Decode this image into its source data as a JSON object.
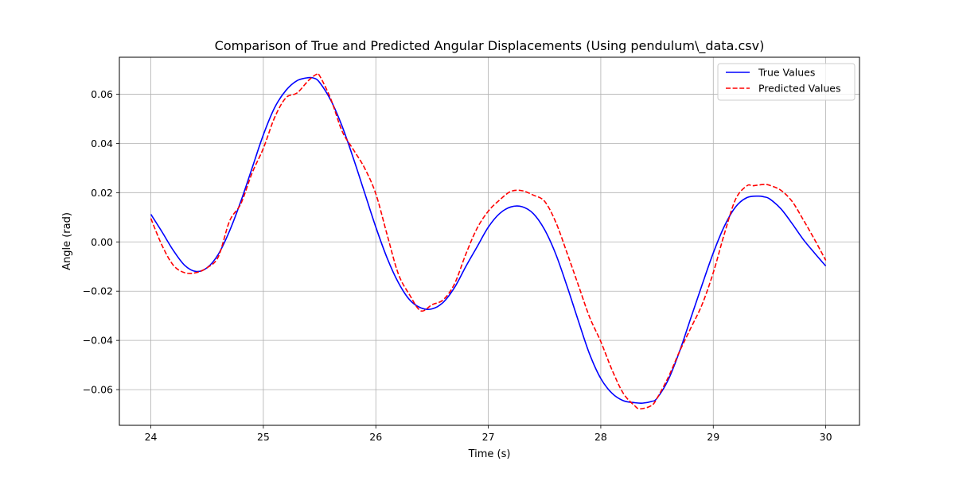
{
  "chart_data": {
    "type": "line",
    "title": "Comparison of True and Predicted Angular Displacements (Using pendulum\\_data.csv)",
    "xlabel": "Time (s)",
    "ylabel": "Angle (rad)",
    "xlim": [
      23.72,
      30.3
    ],
    "ylim": [
      -0.0745,
      0.075
    ],
    "xticks": [
      24,
      25,
      26,
      27,
      28,
      29,
      30
    ],
    "xtick_labels": [
      "24",
      "25",
      "26",
      "27",
      "28",
      "29",
      "30"
    ],
    "yticks": [
      -0.06,
      -0.04,
      -0.02,
      0.0,
      0.02,
      0.04,
      0.06
    ],
    "ytick_labels": [
      "−0.06",
      "−0.04",
      "−0.02",
      "0.00",
      "0.02",
      "0.04",
      "0.06"
    ],
    "grid": true,
    "legend_position": "top-right",
    "series": [
      {
        "name": "True Values",
        "color": "#0000ff",
        "style": "solid",
        "x": [
          24.0,
          24.1,
          24.2,
          24.3,
          24.4,
          24.5,
          24.6,
          24.7,
          24.8,
          24.9,
          25.0,
          25.1,
          25.2,
          25.3,
          25.4,
          25.45,
          25.5,
          25.6,
          25.7,
          25.8,
          25.9,
          26.0,
          26.1,
          26.2,
          26.3,
          26.4,
          26.5,
          26.6,
          26.7,
          26.8,
          26.9,
          27.0,
          27.1,
          27.2,
          27.3,
          27.4,
          27.5,
          27.6,
          27.7,
          27.8,
          27.9,
          28.0,
          28.1,
          28.2,
          28.3,
          28.37,
          28.45,
          28.5,
          28.6,
          28.7,
          28.8,
          28.9,
          29.0,
          29.1,
          29.2,
          29.3,
          29.4,
          29.45,
          29.5,
          29.6,
          29.7,
          29.8,
          29.9,
          30.0
        ],
        "y": [
          0.0112,
          0.004,
          -0.0035,
          -0.0095,
          -0.012,
          -0.0105,
          -0.005,
          0.0045,
          0.0165,
          0.03,
          0.0435,
          0.0545,
          0.0615,
          0.0655,
          0.0667,
          0.0665,
          0.0648,
          0.0575,
          0.047,
          0.034,
          0.02,
          0.006,
          -0.0065,
          -0.0165,
          -0.0235,
          -0.0268,
          -0.0272,
          -0.0245,
          -0.0185,
          -0.01,
          -0.002,
          0.006,
          0.0115,
          0.0142,
          0.0143,
          0.0115,
          0.005,
          -0.005,
          -0.018,
          -0.032,
          -0.0455,
          -0.0555,
          -0.0615,
          -0.0645,
          -0.0653,
          -0.0655,
          -0.0648,
          -0.0635,
          -0.056,
          -0.0445,
          -0.031,
          -0.0175,
          -0.0045,
          0.0065,
          0.0143,
          0.018,
          0.0186,
          0.0183,
          0.0175,
          0.0135,
          0.0075,
          0.001,
          -0.0045,
          -0.0098
        ]
      },
      {
        "name": "Predicted Values",
        "color": "#ff0000",
        "style": "dashed",
        "x": [
          24.0,
          24.1,
          24.2,
          24.3,
          24.4,
          24.5,
          24.6,
          24.7,
          24.8,
          24.9,
          25.0,
          25.1,
          25.2,
          25.3,
          25.4,
          25.47,
          25.5,
          25.6,
          25.7,
          25.8,
          25.9,
          26.0,
          26.1,
          26.2,
          26.3,
          26.4,
          26.5,
          26.6,
          26.7,
          26.8,
          26.9,
          27.0,
          27.1,
          27.2,
          27.3,
          27.4,
          27.5,
          27.6,
          27.7,
          27.8,
          27.9,
          28.0,
          28.1,
          28.2,
          28.3,
          28.35,
          28.45,
          28.5,
          28.6,
          28.7,
          28.8,
          28.9,
          29.0,
          29.1,
          29.2,
          29.3,
          29.35,
          29.45,
          29.5,
          29.6,
          29.7,
          29.8,
          29.9,
          30.0
        ],
        "y": [
          0.0095,
          -0.0015,
          -0.0095,
          -0.0125,
          -0.0125,
          -0.0105,
          -0.006,
          0.0085,
          0.0155,
          0.028,
          0.038,
          0.0505,
          0.0585,
          0.0605,
          0.0655,
          0.068,
          0.0675,
          0.058,
          0.045,
          0.0375,
          0.03,
          0.0195,
          0.003,
          -0.013,
          -0.0215,
          -0.028,
          -0.0255,
          -0.0235,
          -0.017,
          -0.005,
          0.0055,
          0.0125,
          0.017,
          0.0205,
          0.0208,
          0.019,
          0.0165,
          0.008,
          -0.0045,
          -0.0175,
          -0.0305,
          -0.0405,
          -0.052,
          -0.0615,
          -0.0665,
          -0.0678,
          -0.0665,
          -0.0635,
          -0.055,
          -0.0445,
          -0.035,
          -0.0255,
          -0.0125,
          0.0035,
          0.0175,
          0.0228,
          0.0228,
          0.0233,
          0.023,
          0.021,
          0.0165,
          0.009,
          0.001,
          -0.0075
        ]
      }
    ]
  }
}
